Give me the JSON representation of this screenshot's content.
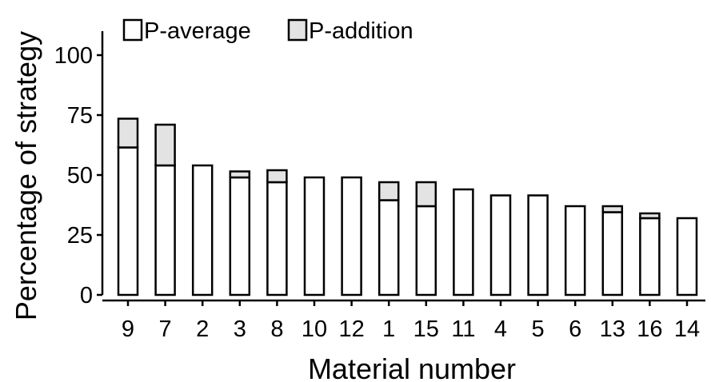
{
  "colors": {
    "p_average_fill": "#ffffff",
    "p_addition_fill": "#e3e3e3",
    "stroke": "#000000"
  },
  "chart_data": {
    "type": "bar",
    "stacked": true,
    "xlabel": "Material number",
    "ylabel": "Percentage of strategy",
    "ylim": [
      0,
      110
    ],
    "yticks": [
      0,
      25,
      50,
      75,
      100
    ],
    "grid": false,
    "legend_placement": "top-left",
    "categories": [
      "9",
      "7",
      "2",
      "3",
      "8",
      "10",
      "12",
      "1",
      "15",
      "11",
      "4",
      "5",
      "6",
      "13",
      "16",
      "14"
    ],
    "series": [
      {
        "name": "P-average",
        "values": [
          61.5,
          54,
          54,
          49,
          47,
          49,
          49,
          39.5,
          37,
          44,
          41.5,
          41.5,
          37,
          34.5,
          32,
          32
        ]
      },
      {
        "name": "P-addition",
        "values": [
          12,
          17,
          0,
          2.5,
          5,
          0,
          0,
          7.5,
          10,
          0,
          0,
          0,
          0,
          2.5,
          2,
          0
        ]
      }
    ]
  }
}
